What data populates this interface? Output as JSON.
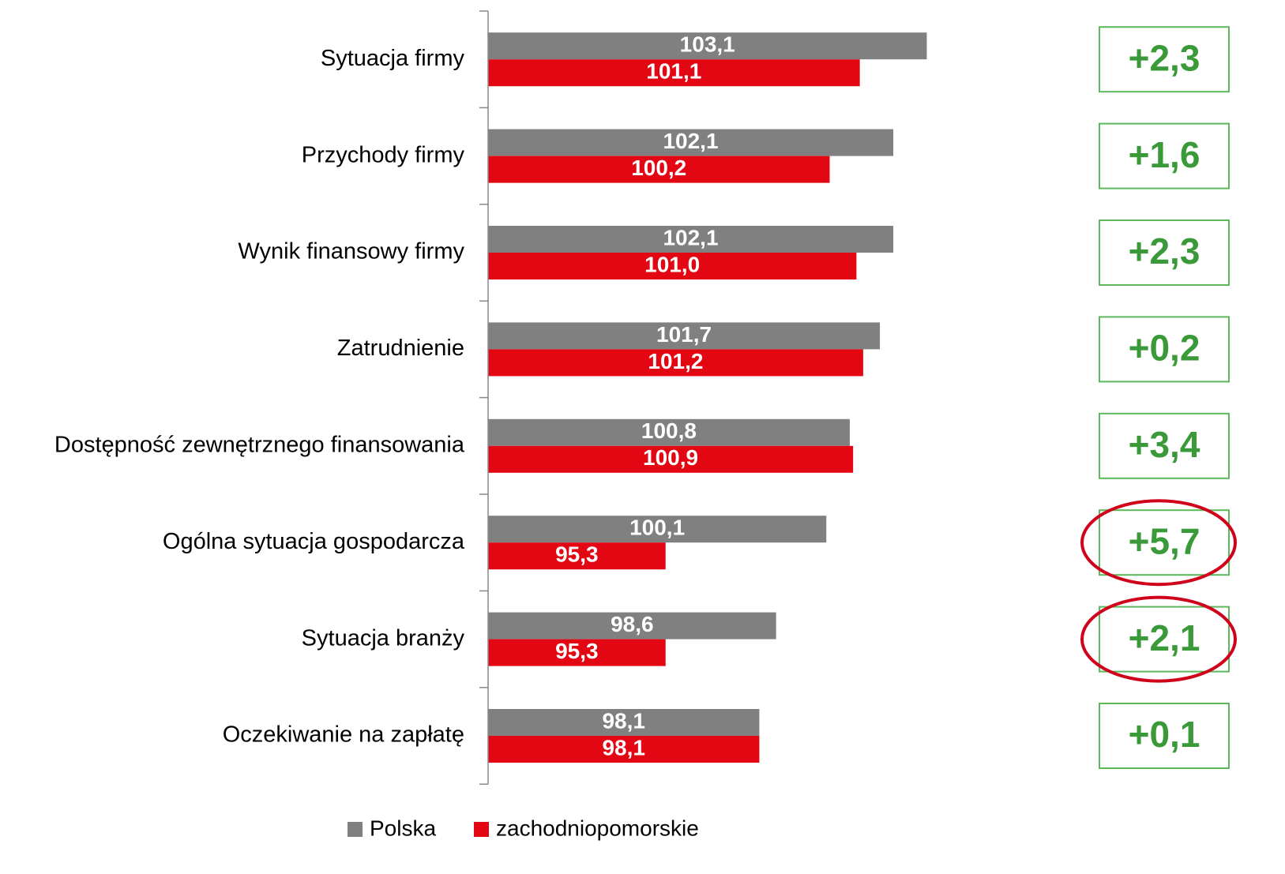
{
  "chart_data": {
    "type": "hbar",
    "categories": [
      "Sytuacja firmy",
      "Przychody firmy",
      "Wynik finansowy firmy",
      "Zatrudnienie",
      "Dostępność zewnętrznego finansowania",
      "Ogólna sytuacja gospodarcza",
      "Sytuacja branży",
      "Oczekiwanie na zapłatę"
    ],
    "series": [
      {
        "name": "Polska",
        "color": "#808080",
        "values": [
          103.1,
          102.1,
          102.1,
          101.7,
          100.8,
          100.1,
          98.6,
          98.1
        ],
        "value_labels": [
          "103,1",
          "102,1",
          "102,1",
          "101,7",
          "100,8",
          "100,1",
          "98,6",
          "98,1"
        ]
      },
      {
        "name": "zachodniopomorskie",
        "color": "#e30613",
        "values": [
          101.1,
          100.2,
          101.0,
          101.2,
          100.9,
          95.3,
          95.3,
          98.1
        ],
        "value_labels": [
          "101,1",
          "100,2",
          "101,0",
          "101,2",
          "100,9",
          "95,3",
          "95,3",
          "98,1"
        ]
      }
    ],
    "annotations": [
      "+2,3",
      "+1,6",
      "+2,3",
      "+0,2",
      "+3,4",
      "+5,7",
      "+2,1",
      "+0,1"
    ],
    "highlighted_annotations": [
      5,
      6
    ],
    "xlim": [
      90,
      108
    ]
  }
}
